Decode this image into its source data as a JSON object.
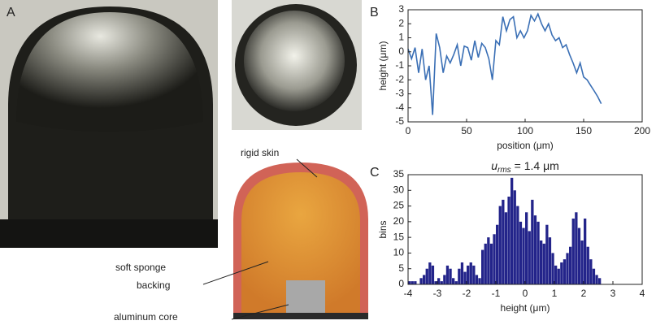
{
  "panels": {
    "a": "A",
    "b": "B",
    "c": "C"
  },
  "annotations": {
    "skin": "rigid skin",
    "sponge": "soft sponge",
    "backing": "backing",
    "core": "aluminum core"
  },
  "chart_data": [
    {
      "type": "line",
      "xlabel": "position (μm)",
      "ylabel": "height (μm)",
      "color": "#3a6fb5",
      "x": [
        0,
        3,
        6,
        9,
        12,
        15,
        18,
        21,
        24,
        27,
        30,
        33,
        36,
        39,
        42,
        45,
        48,
        51,
        54,
        57,
        60,
        63,
        66,
        69,
        72,
        75,
        78,
        81,
        84,
        87,
        90,
        93,
        96,
        99,
        102,
        105,
        108,
        111,
        114,
        117,
        120,
        123,
        126,
        129,
        132,
        135,
        138,
        141,
        144,
        147,
        150,
        153,
        156,
        159,
        162,
        165
      ],
      "values": [
        0.2,
        -0.5,
        0.3,
        -1.5,
        0.2,
        -2,
        -1.0,
        -4.5,
        1.3,
        0.3,
        -1.5,
        -0.3,
        -0.8,
        -0.2,
        0.5,
        -1,
        0.4,
        0.3,
        -0.6,
        0.8,
        -0.4,
        0.6,
        0.3,
        -0.5,
        -2.0,
        0.8,
        0.5,
        2.5,
        1.5,
        2.3,
        2.5,
        1.0,
        1.5,
        1.0,
        1.5,
        2.6,
        2.2,
        2.7,
        2.0,
        1.5,
        2.0,
        1.2,
        0.8,
        1.0,
        0.3,
        0.5,
        -0.2,
        -0.8,
        -1.5,
        -0.8,
        -1.8,
        -2.0,
        -2.4,
        -2.8,
        -3.2,
        -3.7
      ],
      "xlim": [
        0,
        200
      ],
      "xticks": [
        0,
        50,
        100,
        150,
        200
      ],
      "ylim": [
        -5,
        3
      ],
      "yticks": [
        -5,
        -4,
        -3,
        -2,
        -1,
        0,
        1,
        2,
        3
      ]
    },
    {
      "type": "histogram",
      "title": {
        "symbol": "u",
        "subscript": "rms",
        "text": "= 1.4 μm"
      },
      "xlabel": "height (μm)",
      "ylabel": "bins",
      "color": "#23248a",
      "bins": [
        -4.0,
        -3.9,
        -3.8,
        -3.7,
        -3.6,
        -3.5,
        -3.4,
        -3.3,
        -3.2,
        -3.1,
        -3.0,
        -2.9,
        -2.8,
        -2.7,
        -2.6,
        -2.5,
        -2.4,
        -2.3,
        -2.2,
        -2.1,
        -2.0,
        -1.9,
        -1.8,
        -1.7,
        -1.6,
        -1.5,
        -1.4,
        -1.3,
        -1.2,
        -1.1,
        -1.0,
        -0.9,
        -0.8,
        -0.7,
        -0.6,
        -0.5,
        -0.4,
        -0.3,
        -0.2,
        -0.1,
        0.0,
        0.1,
        0.2,
        0.3,
        0.4,
        0.5,
        0.6,
        0.7,
        0.8,
        0.9,
        1.0,
        1.1,
        1.2,
        1.3,
        1.4,
        1.5,
        1.6,
        1.7,
        1.8,
        1.9,
        2.0,
        2.1,
        2.2,
        2.3,
        2.4,
        2.5,
        2.6
      ],
      "values": [
        1,
        1,
        1,
        0,
        2,
        3,
        5,
        7,
        6,
        1,
        2,
        1,
        3,
        6,
        5,
        2,
        1,
        5,
        7,
        4,
        6,
        7,
        6,
        3,
        2,
        11,
        13,
        15,
        13,
        16,
        19,
        25,
        27,
        23,
        28,
        34,
        30,
        25,
        20,
        18,
        23,
        17,
        27,
        22,
        20,
        14,
        13,
        19,
        15,
        10,
        6,
        5,
        7,
        8,
        10,
        12,
        21,
        23,
        18,
        14,
        21,
        12,
        8,
        5,
        3,
        2
      ],
      "xlim": [
        -4,
        4
      ],
      "xticks": [
        -4,
        -3,
        -2,
        -1,
        0,
        1,
        2,
        3,
        4
      ],
      "ylim": [
        0,
        35
      ],
      "yticks": [
        0,
        5,
        10,
        15,
        20,
        25,
        30,
        35
      ]
    }
  ]
}
